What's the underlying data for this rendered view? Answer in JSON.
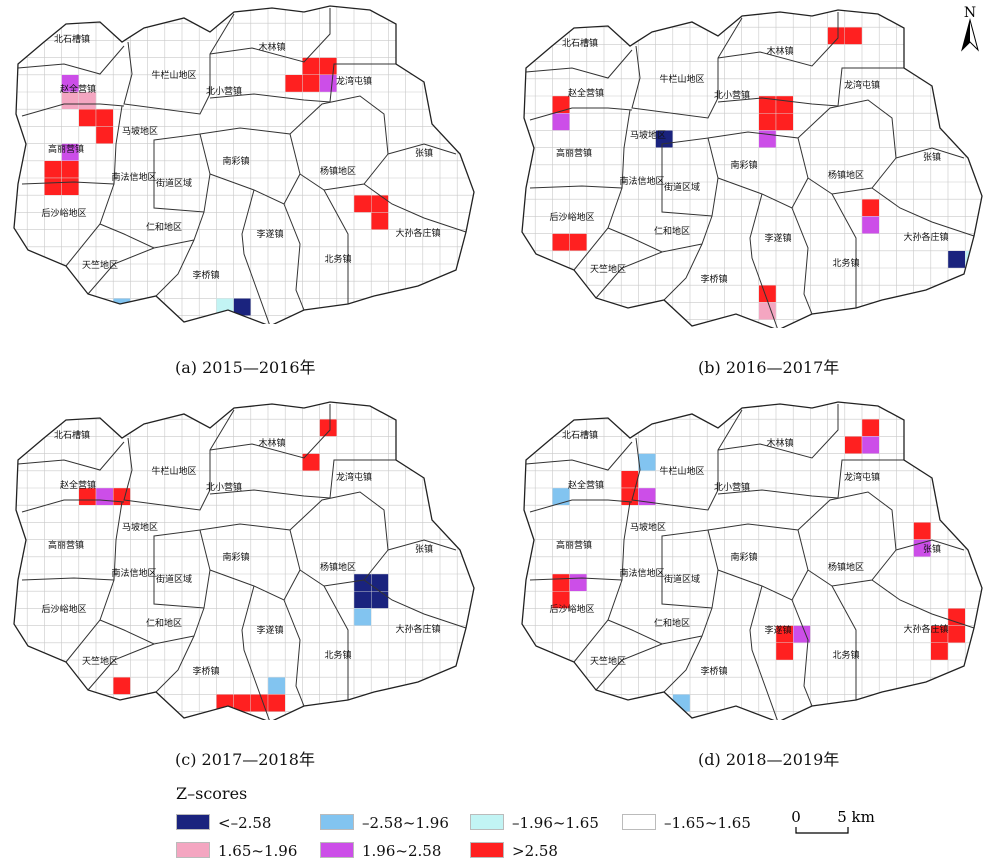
{
  "colors": {
    "lt_258": "#1a237e",
    "n258_196": "#82c4f0",
    "n196_165": "#c2f4f4",
    "n165_165": "#ffffff",
    "p165_196": "#f4a6c1",
    "p196_258": "#cc4ee8",
    "gt_258": "#ff2020"
  },
  "legend": {
    "title": "Z–scores",
    "items": [
      {
        "key": "lt_258",
        "label": "<–2.58"
      },
      {
        "key": "n258_196",
        "label": "–2.58~1.96"
      },
      {
        "key": "n196_165",
        "label": "–1.96~1.65"
      },
      {
        "key": "n165_165",
        "label": "–1.65~1.65"
      },
      {
        "key": "p165_196",
        "label": "1.65~1.96"
      },
      {
        "key": "p196_258",
        "label": "1.96~2.58"
      },
      {
        "key": "gt_258",
        "label": ">2.58"
      }
    ]
  },
  "scale": {
    "start": "0",
    "end": "5 km"
  },
  "north": "N",
  "panels": [
    {
      "caption": "(a) 2015—2016年",
      "labels": [
        "北石槽镇",
        "牛栏山地区",
        "木林镇",
        "北小营镇",
        "龙湾屯镇",
        "赵全营镇",
        "马坡地区",
        "高丽营镇",
        "南彩镇",
        "杨镇地区",
        "张镇",
        "南法信地区",
        "街道区域",
        "后沙峪地区",
        "仁和地区",
        "李遂镇",
        "大孙各庄镇",
        "天竺地区",
        "北务镇",
        "李桥镇"
      ],
      "cells": [
        [
          3,
          4,
          "p196_258"
        ],
        [
          3,
          5,
          "p165_196"
        ],
        [
          4,
          5,
          "p165_196"
        ],
        [
          4,
          6,
          "gt_258"
        ],
        [
          5,
          6,
          "gt_258"
        ],
        [
          5,
          7,
          "gt_258"
        ],
        [
          3,
          8,
          "p196_258"
        ],
        [
          2,
          9,
          "gt_258"
        ],
        [
          3,
          9,
          "gt_258"
        ],
        [
          2,
          10,
          "gt_258"
        ],
        [
          3,
          10,
          "gt_258"
        ],
        [
          17,
          3,
          "gt_258"
        ],
        [
          18,
          3,
          "gt_258"
        ],
        [
          16,
          4,
          "gt_258"
        ],
        [
          17,
          4,
          "gt_258"
        ],
        [
          18,
          4,
          "p196_258"
        ],
        [
          20,
          11,
          "gt_258"
        ],
        [
          21,
          11,
          "gt_258"
        ],
        [
          21,
          12,
          "gt_258"
        ],
        [
          12,
          17,
          "n196_165"
        ],
        [
          13,
          17,
          "lt_258"
        ],
        [
          6,
          17,
          "n258_196"
        ],
        [
          25,
          16,
          "p196_258"
        ]
      ]
    },
    {
      "caption": "(b) 2016—2017年",
      "labels": [
        "北石槽镇",
        "牛栏山地区",
        "木林镇",
        "北小营镇",
        "龙湾屯镇",
        "赵全营镇",
        "马坡地区",
        "高丽营镇",
        "南彩镇",
        "杨镇地区",
        "张镇",
        "南法信地区",
        "街道区域",
        "后沙峪地区",
        "仁和地区",
        "李遂镇",
        "大孙各庄镇",
        "天竺地区",
        "北务镇",
        "李桥镇"
      ],
      "cells": [
        [
          18,
          1,
          "gt_258"
        ],
        [
          19,
          1,
          "gt_258"
        ],
        [
          2,
          5,
          "gt_258"
        ],
        [
          2,
          6,
          "p196_258"
        ],
        [
          14,
          5,
          "gt_258"
        ],
        [
          15,
          5,
          "gt_258"
        ],
        [
          14,
          6,
          "gt_258"
        ],
        [
          15,
          6,
          "gt_258"
        ],
        [
          14,
          7,
          "p196_258"
        ],
        [
          8,
          7,
          "lt_258"
        ],
        [
          2,
          13,
          "gt_258"
        ],
        [
          3,
          13,
          "gt_258"
        ],
        [
          20,
          11,
          "gt_258"
        ],
        [
          20,
          12,
          "p196_258"
        ],
        [
          25,
          14,
          "lt_258"
        ],
        [
          26,
          14,
          "n196_165"
        ],
        [
          14,
          16,
          "gt_258"
        ],
        [
          14,
          17,
          "p165_196"
        ]
      ]
    },
    {
      "caption": "(c) 2017—2018年",
      "labels": [
        "北石槽镇",
        "牛栏山地区",
        "木林镇",
        "北小营镇",
        "龙湾屯镇",
        "赵全营镇",
        "马坡地区",
        "高丽营镇",
        "南彩镇",
        "杨镇地区",
        "张镇",
        "南法信地区",
        "街道区域",
        "后沙峪地区",
        "仁和地区",
        "李遂镇",
        "大孙各庄镇",
        "天竺地区",
        "北务镇",
        "李桥镇"
      ],
      "cells": [
        [
          18,
          1,
          "gt_258"
        ],
        [
          17,
          3,
          "gt_258"
        ],
        [
          4,
          5,
          "gt_258"
        ],
        [
          5,
          5,
          "p196_258"
        ],
        [
          6,
          5,
          "gt_258"
        ],
        [
          20,
          10,
          "lt_258"
        ],
        [
          21,
          10,
          "lt_258"
        ],
        [
          20,
          11,
          "lt_258"
        ],
        [
          21,
          11,
          "lt_258"
        ],
        [
          20,
          12,
          "n258_196"
        ],
        [
          6,
          16,
          "gt_258"
        ],
        [
          15,
          16,
          "n258_196"
        ],
        [
          12,
          17,
          "gt_258"
        ],
        [
          13,
          17,
          "gt_258"
        ],
        [
          14,
          17,
          "gt_258"
        ],
        [
          15,
          17,
          "gt_258"
        ]
      ]
    },
    {
      "caption": "(d) 2018—2019年",
      "labels": [
        "北石槽镇",
        "牛栏山地区",
        "木林镇",
        "北小营镇",
        "龙湾屯镇",
        "赵全营镇",
        "马坡地区",
        "高丽营镇",
        "南彩镇",
        "杨镇地区",
        "张镇",
        "南法信地区",
        "街道区域",
        "后沙峪地区",
        "仁和地区",
        "李遂镇",
        "大孙各庄镇",
        "天竺地区",
        "北务镇",
        "李桥镇"
      ],
      "cells": [
        [
          20,
          1,
          "gt_258"
        ],
        [
          19,
          2,
          "gt_258"
        ],
        [
          20,
          2,
          "p196_258"
        ],
        [
          7,
          3,
          "n258_196"
        ],
        [
          6,
          4,
          "gt_258"
        ],
        [
          6,
          5,
          "gt_258"
        ],
        [
          7,
          5,
          "p196_258"
        ],
        [
          2,
          5,
          "n258_196"
        ],
        [
          23,
          7,
          "gt_258"
        ],
        [
          23,
          8,
          "p196_258"
        ],
        [
          2,
          10,
          "gt_258"
        ],
        [
          3,
          10,
          "p196_258"
        ],
        [
          2,
          11,
          "gt_258"
        ],
        [
          25,
          12,
          "gt_258"
        ],
        [
          24,
          13,
          "gt_258"
        ],
        [
          25,
          13,
          "gt_258"
        ],
        [
          24,
          14,
          "gt_258"
        ],
        [
          15,
          13,
          "gt_258"
        ],
        [
          16,
          13,
          "p196_258"
        ],
        [
          15,
          14,
          "gt_258"
        ],
        [
          9,
          17,
          "n258_196"
        ]
      ]
    }
  ]
}
